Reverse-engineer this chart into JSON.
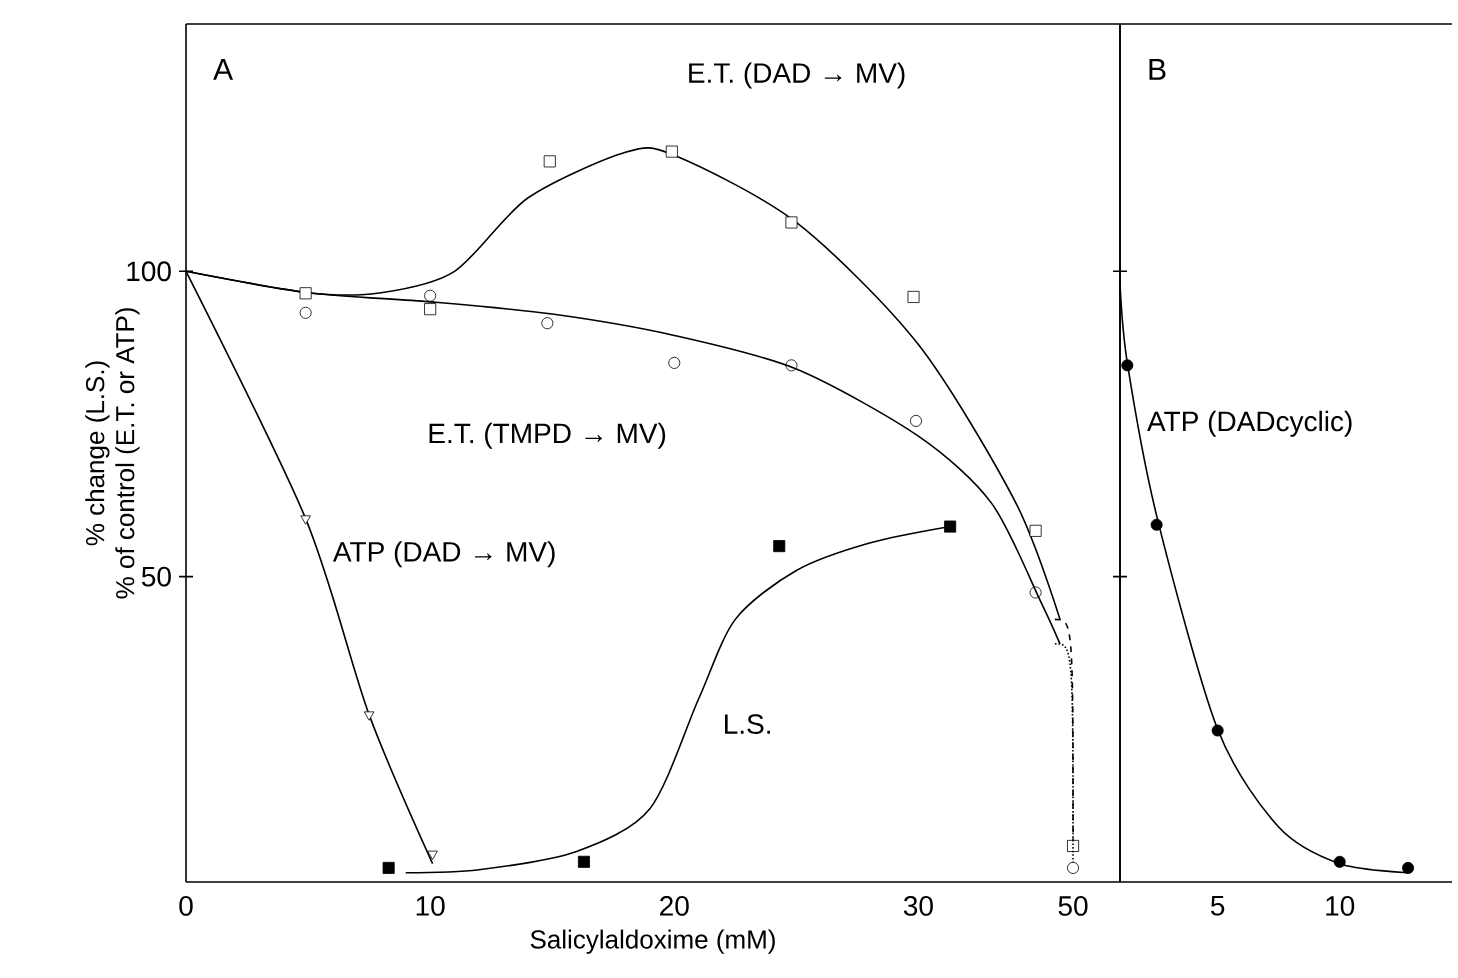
{
  "chart_data": [
    {
      "type": "scatter",
      "xlabel": "Salicylaldoxime (mM)",
      "ylabel": "% change  (L.S.)",
      "xlim": [
        0,
        35.8
      ],
      "ylim": [
        0,
        140.5
      ],
      "xticks": [
        0,
        10,
        20,
        30
      ],
      "yticks": [
        50,
        100
      ],
      "annotations": [
        "A",
        "% of control (E.T. or ATP)",
        "E.T. (DAD → MV)",
        "E.T. (TMPD → MV)",
        "ATP (DAD → MV)",
        "L.S."
      ],
      "series": [
        {
          "marker": "square",
          "color": "#000000",
          "x": [
            4.9,
            10,
            14.9,
            19.9,
            24.8,
            29.8,
            34.8
          ],
          "values": [
            96.4,
            93.8,
            118,
            119.6,
            108,
            95.8,
            57.5
          ]
        },
        {
          "marker": "circle",
          "color": "#000000",
          "x": [
            4.9,
            10,
            14.8,
            20,
            24.8,
            29.9,
            34.8
          ],
          "values": [
            93.2,
            96,
            91.5,
            85,
            84.6,
            75.5,
            47.4
          ]
        },
        {
          "marker": "triangle down",
          "color": "#000000",
          "x": [
            4.9,
            7.5,
            10.1
          ],
          "values": [
            59.5,
            27.4,
            4.6
          ]
        },
        {
          "marker": "square filled",
          "color": "#000000",
          "x": [
            8.3,
            16.3,
            24.3,
            31.3
          ],
          "values": [
            2.3,
            3.3,
            55,
            58.2
          ]
        },
        {
          "type": "line",
          "color": "#000000",
          "x": [
            0,
            5,
            8,
            11,
            14,
            18,
            20,
            25,
            30,
            34,
            35.8
          ],
          "values": [
            100,
            96.5,
            96.5,
            100,
            112,
            119.5,
            119,
            108,
            88,
            62,
            43
          ]
        },
        {
          "type": "line",
          "color": "#000000",
          "x": [
            0,
            5,
            10,
            15,
            20,
            25,
            30,
            33,
            35,
            35.8
          ],
          "values": [
            100,
            96.5,
            95,
            93,
            89.5,
            84,
            73,
            62,
            46,
            39
          ]
        },
        {
          "type": "line",
          "color": "#000000",
          "x": [
            0,
            4.9,
            7.5,
            10.1
          ],
          "values": [
            100,
            59.5,
            27.4,
            3
          ]
        },
        {
          "type": "line",
          "color": "#000000",
          "x": [
            9,
            12,
            16,
            19,
            21,
            22.5,
            25,
            28,
            31.3
          ],
          "values": [
            1.5,
            2,
            5,
            12,
            30,
            43,
            51,
            55.5,
            58.2
          ]
        }
      ]
    },
    {
      "type": "scatter",
      "categories": [
        "50"
      ],
      "ylim": [
        0,
        140.5
      ],
      "tick_labels": "x",
      "series": [
        {
          "marker": "square",
          "color": "#000000",
          "values": [
            5.9
          ]
        },
        {
          "marker": "circle",
          "color": "#000000",
          "values": [
            2.3
          ]
        }
      ]
    },
    {
      "type": "scatter",
      "xlim": [
        1,
        14.6
      ],
      "ylim": [
        0,
        140.5
      ],
      "xticks": [
        5,
        10
      ],
      "yticks": [
        {
          "value": 50,
          "label": null
        },
        {
          "value": 100,
          "label": null
        }
      ],
      "tick_labels": "x",
      "annotations": [
        "B",
        "ATP (DADcyclic)"
      ],
      "series": [
        {
          "marker": "circle filled",
          "color": "#000000",
          "x": [
            1.3,
            2.5,
            5,
            10,
            12.8
          ],
          "values": [
            84.6,
            58.5,
            24.8,
            3.3,
            2.3
          ]
        },
        {
          "type": "line",
          "color": "#000000",
          "x": [
            1,
            1.3,
            2.5,
            5,
            7.5,
            10,
            12.8
          ],
          "values": [
            98,
            85,
            60,
            25,
            9,
            3,
            1.5
          ]
        }
      ]
    }
  ]
}
